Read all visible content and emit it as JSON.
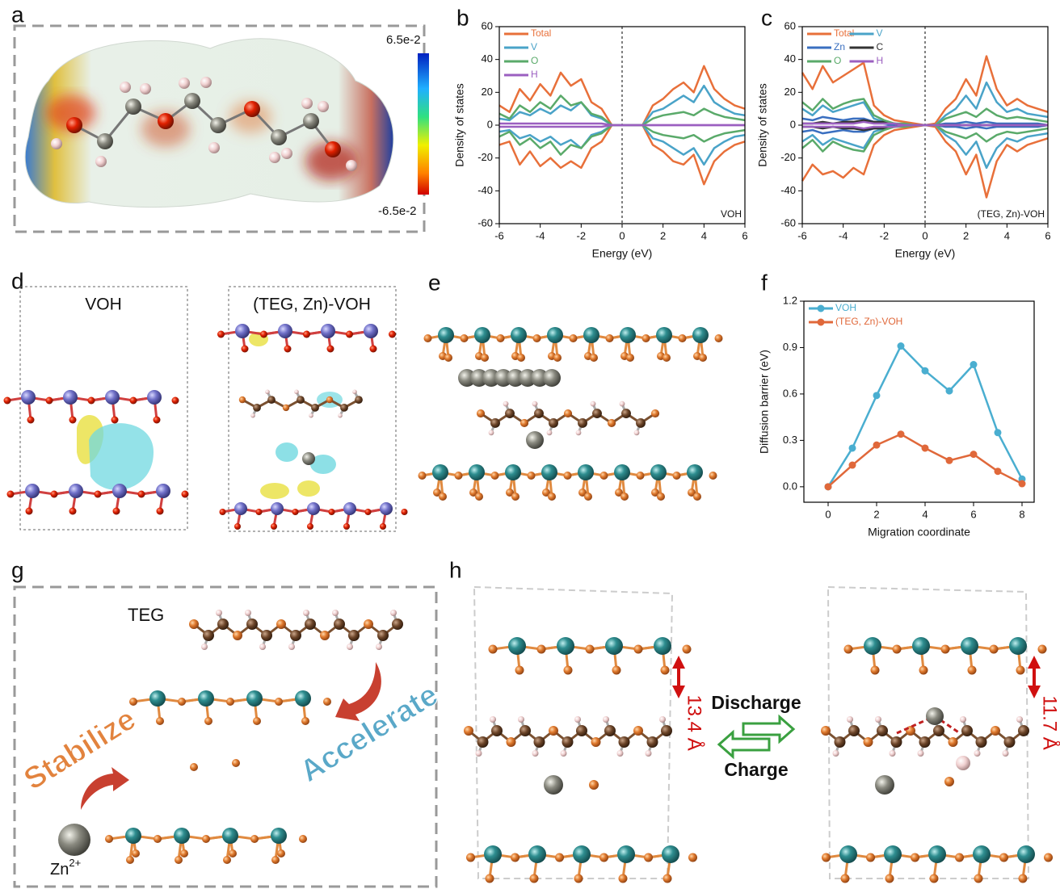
{
  "texts": {
    "labels": {
      "a": "a",
      "b": "b",
      "c": "c",
      "d": "d",
      "e": "e",
      "f": "f",
      "g": "g",
      "h": "h"
    },
    "colorbar_max": "6.5e-2",
    "colorbar_min": "-6.5e-2",
    "d_left": "VOH",
    "d_right": "(TEG, Zn)-VOH",
    "teg": "TEG",
    "zn": "Zn",
    "zn_charge": "2+",
    "stabilize": "Stabilize",
    "accelerate": "Accelerate",
    "discharge": "Discharge",
    "charge": "Charge",
    "spacing_left": "13.4 Å",
    "spacing_right": "11.7 Å"
  },
  "chart_data": [
    {
      "type": "line",
      "xlabel": "Energy (eV)",
      "ylabel": "Density of states",
      "annotation": "VOH",
      "x": [
        -6,
        -5.5,
        -5,
        -4.5,
        -4,
        -3.5,
        -3,
        -2.5,
        -2,
        -1.5,
        -1,
        -0.5,
        0,
        0.5,
        1,
        1.5,
        2,
        2.5,
        3,
        3.5,
        4,
        4.5,
        5,
        5.5,
        6
      ],
      "xlim": [
        -6,
        6
      ],
      "xticks": [
        -6,
        -4,
        -2,
        0,
        2,
        4,
        6
      ],
      "ylim": [
        -60,
        60
      ],
      "yticks": [
        -60,
        -40,
        -20,
        0,
        20,
        40,
        60
      ],
      "vline": 0,
      "legend": "upper left",
      "legend_columns": 1,
      "series": [
        {
          "name": "Total",
          "color": "#e8703a",
          "values": [
            12,
            8,
            22,
            15,
            25,
            18,
            32,
            24,
            28,
            14,
            10,
            0,
            0,
            0,
            0,
            12,
            16,
            22,
            26,
            20,
            36,
            22,
            16,
            12,
            10
          ],
          "values_down": [
            -12,
            -10,
            -24,
            -16,
            -25,
            -20,
            -26,
            -22,
            -26,
            -14,
            -10,
            0,
            0,
            0,
            0,
            -12,
            -16,
            -22,
            -24,
            -18,
            -36,
            -22,
            -16,
            -12,
            -10
          ]
        },
        {
          "name": "V",
          "color": "#4aa3c8",
          "values": [
            4,
            3,
            8,
            6,
            10,
            7,
            12,
            9,
            14,
            6,
            4,
            0,
            0,
            0,
            0,
            8,
            10,
            14,
            18,
            14,
            24,
            14,
            10,
            7,
            6
          ],
          "values_down": [
            -4,
            -3,
            -8,
            -6,
            -10,
            -7,
            -12,
            -9,
            -14,
            -6,
            -4,
            0,
            0,
            0,
            0,
            -8,
            -10,
            -14,
            -18,
            -14,
            -24,
            -14,
            -10,
            -7,
            -6
          ]
        },
        {
          "name": "O",
          "color": "#5aaa6a",
          "values": [
            7,
            4,
            12,
            8,
            14,
            10,
            18,
            12,
            14,
            7,
            5,
            0,
            0,
            0,
            0,
            4,
            6,
            7,
            8,
            6,
            10,
            7,
            5,
            4,
            3
          ],
          "values_down": [
            -7,
            -4,
            -12,
            -8,
            -14,
            -10,
            -18,
            -12,
            -14,
            -7,
            -5,
            0,
            0,
            0,
            0,
            -4,
            -6,
            -7,
            -8,
            -6,
            -10,
            -7,
            -5,
            -4,
            -3
          ]
        },
        {
          "name": "H",
          "color": "#9b5fc0",
          "values": [
            1,
            1,
            1,
            1,
            1,
            1,
            1,
            1,
            1,
            1,
            1,
            0,
            0,
            0,
            0,
            0,
            0,
            0,
            0,
            0,
            0,
            0,
            0,
            0,
            0
          ],
          "values_down": [
            -1,
            -1,
            -1,
            -1,
            -1,
            -1,
            -1,
            -1,
            -1,
            -1,
            -1,
            0,
            0,
            0,
            0,
            0,
            0,
            0,
            0,
            0,
            0,
            0,
            0,
            0,
            0
          ]
        }
      ]
    },
    {
      "type": "line",
      "xlabel": "Energy (eV)",
      "ylabel": "Density of states",
      "annotation": "(TEG, Zn)-VOH",
      "x": [
        -6,
        -5.5,
        -5,
        -4.5,
        -4,
        -3.5,
        -3,
        -2.5,
        -2,
        -1.5,
        -1,
        -0.5,
        0,
        0.5,
        1,
        1.5,
        2,
        2.5,
        3,
        3.5,
        4,
        4.5,
        5,
        5.5,
        6
      ],
      "xlim": [
        -6,
        6
      ],
      "xticks": [
        -6,
        -4,
        -2,
        0,
        2,
        4,
        6
      ],
      "ylim": [
        -60,
        60
      ],
      "yticks": [
        -60,
        -40,
        -20,
        0,
        20,
        40,
        60
      ],
      "vline": 0,
      "legend": "upper left",
      "legend_columns": 2,
      "series": [
        {
          "name": "Total",
          "color": "#e8703a",
          "values": [
            32,
            22,
            36,
            26,
            30,
            34,
            38,
            12,
            6,
            3,
            2,
            1,
            0,
            1,
            10,
            16,
            28,
            18,
            42,
            22,
            12,
            16,
            12,
            10,
            8
          ],
          "values_down": [
            -34,
            -24,
            -30,
            -28,
            -32,
            -26,
            -30,
            -12,
            -6,
            -3,
            -2,
            -1,
            0,
            -1,
            -10,
            -16,
            -30,
            -18,
            -44,
            -22,
            -12,
            -16,
            -12,
            -10,
            -8
          ]
        },
        {
          "name": "V",
          "color": "#4aa3c8",
          "values": [
            10,
            6,
            12,
            8,
            10,
            12,
            14,
            4,
            2,
            1,
            0,
            0,
            0,
            0,
            6,
            10,
            18,
            10,
            26,
            14,
            8,
            10,
            7,
            6,
            5
          ],
          "values_down": [
            -10,
            -6,
            -12,
            -8,
            -10,
            -12,
            -14,
            -4,
            -2,
            -1,
            0,
            0,
            0,
            0,
            -6,
            -10,
            -18,
            -10,
            -26,
            -14,
            -8,
            -10,
            -7,
            -6,
            -5
          ]
        },
        {
          "name": "Zn",
          "color": "#3a6fc0",
          "values": [
            4,
            3,
            5,
            4,
            3,
            4,
            4,
            2,
            1,
            0,
            0,
            0,
            0,
            0,
            1,
            1,
            2,
            1,
            2,
            1,
            1,
            1,
            1,
            1,
            0
          ],
          "values_down": [
            -4,
            -3,
            -5,
            -4,
            -3,
            -4,
            -4,
            -2,
            -1,
            0,
            0,
            0,
            0,
            0,
            -1,
            -1,
            -2,
            -1,
            -2,
            -1,
            -1,
            -1,
            -1,
            -1,
            0
          ]
        },
        {
          "name": "C",
          "color": "#333333",
          "values": [
            1,
            1,
            2,
            1,
            2,
            2,
            3,
            2,
            2,
            1,
            0,
            0,
            0,
            0,
            0,
            0,
            0,
            0,
            0,
            0,
            0,
            0,
            0,
            0,
            0
          ],
          "values_down": [
            -1,
            -1,
            -2,
            -1,
            -2,
            -2,
            -3,
            -2,
            -2,
            -1,
            0,
            0,
            0,
            0,
            0,
            0,
            0,
            0,
            0,
            0,
            0,
            0,
            0,
            0,
            0
          ]
        },
        {
          "name": "O",
          "color": "#5aaa6a",
          "values": [
            14,
            9,
            16,
            10,
            13,
            15,
            16,
            6,
            3,
            1,
            1,
            0,
            0,
            0,
            4,
            6,
            8,
            5,
            10,
            6,
            4,
            5,
            4,
            3,
            2
          ],
          "values_down": [
            -14,
            -9,
            -16,
            -10,
            -13,
            -15,
            -16,
            -6,
            -3,
            -1,
            -1,
            0,
            0,
            0,
            -4,
            -6,
            -8,
            -5,
            -10,
            -6,
            -4,
            -5,
            -4,
            -3,
            -2
          ]
        },
        {
          "name": "H",
          "color": "#9b5fc0",
          "values": [
            1,
            1,
            1,
            1,
            1,
            1,
            2,
            1,
            1,
            1,
            0,
            0,
            0,
            0,
            0,
            0,
            0,
            0,
            0,
            0,
            0,
            0,
            0,
            0,
            0
          ],
          "values_down": [
            -1,
            -1,
            -1,
            -1,
            -1,
            -1,
            -2,
            -1,
            -1,
            -1,
            0,
            0,
            0,
            0,
            0,
            0,
            0,
            0,
            0,
            0,
            0,
            0,
            0,
            0,
            0
          ]
        }
      ]
    },
    {
      "type": "line",
      "xlabel": "Migration coordinate",
      "ylabel": "Diffusion barrier (eV)",
      "markers": true,
      "x": [
        0,
        1,
        2,
        3,
        4,
        5,
        6,
        7,
        8
      ],
      "xlim": [
        -1,
        8.5
      ],
      "xticks": [
        0,
        2,
        4,
        6,
        8
      ],
      "ylim": [
        -0.1,
        1.2
      ],
      "yticks": [
        {
          "value": 0,
          "label": "0.0"
        },
        0.3,
        0.6,
        0.9,
        1.2
      ],
      "legend": "upper left",
      "legend_columns": 1,
      "series": [
        {
          "name": "VOH",
          "color": "#4aaed0",
          "values": [
            0,
            0.25,
            0.59,
            0.91,
            0.75,
            0.62,
            0.79,
            0.35,
            0.05
          ]
        },
        {
          "name": "(TEG, Zn)-VOH",
          "color": "#e0683a",
          "values": [
            0,
            0.14,
            0.27,
            0.34,
            0.25,
            0.17,
            0.21,
            0.1,
            0.02
          ]
        }
      ]
    }
  ]
}
